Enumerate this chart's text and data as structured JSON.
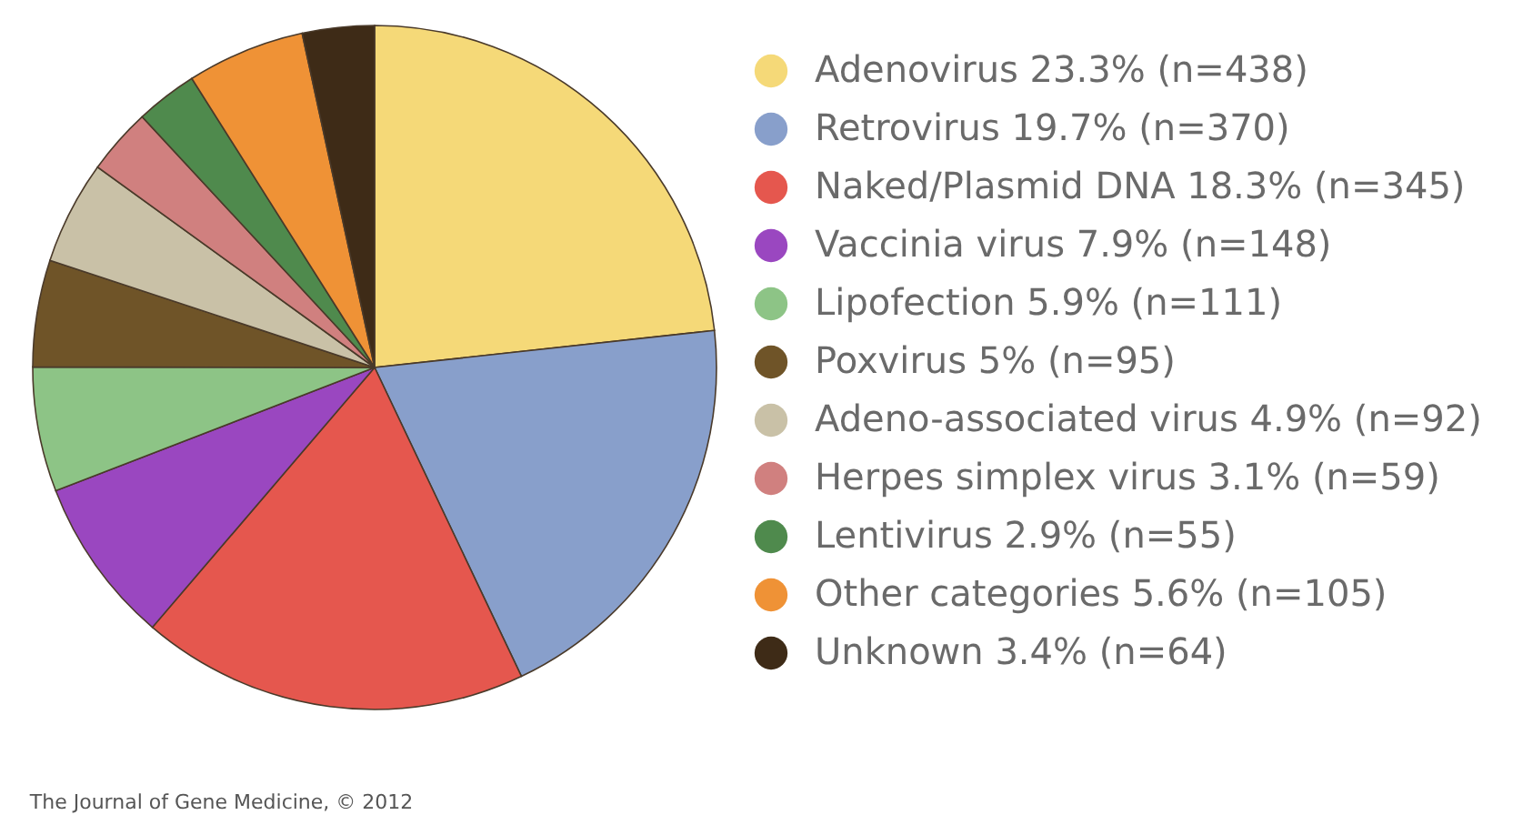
{
  "chart_data": {
    "type": "pie",
    "categories": [
      "Adenovirus 23.3% (n=438)",
      "Retrovirus 19.7% (n=370)",
      "Naked/Plasmid DNA 18.3% (n=345)",
      "Vaccinia virus 7.9% (n=148)",
      "Lipofection 5.9% (n=111)",
      "Poxvirus 5% (n=95)",
      "Adeno-associated virus 4.9% (n=92)",
      "Herpes simplex virus 3.1% (n=59)",
      "Lentivirus 2.9% (n=55)",
      "Other categories 5.6% (n=105)",
      "Unknown 3.4% (n=64)"
    ],
    "values": [
      438,
      370,
      345,
      148,
      111,
      95,
      92,
      59,
      55,
      105,
      64
    ],
    "colors": [
      "#f5d978",
      "#889fcb",
      "#e5574e",
      "#9a47c0",
      "#8dc486",
      "#6f5428",
      "#c9c1a7",
      "#d0807f",
      "#4f8a4d",
      "#ef9236",
      "#3e2b17"
    ],
    "legend": "right",
    "annotations": [
      "The Journal of Gene Medicine, © 2012"
    ]
  }
}
